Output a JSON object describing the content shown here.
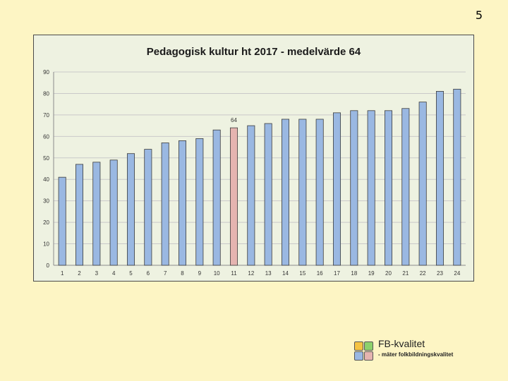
{
  "page_number": "5",
  "chart_data": {
    "type": "bar",
    "title": "Pedagogisk kultur ht 2017 - medelvärde 64",
    "xlabel": "",
    "ylabel": "",
    "categories": [
      "1",
      "2",
      "3",
      "4",
      "5",
      "6",
      "7",
      "8",
      "9",
      "10",
      "11",
      "12",
      "13",
      "14",
      "15",
      "16",
      "17",
      "18",
      "19",
      "20",
      "21",
      "22",
      "23",
      "24"
    ],
    "values": [
      41,
      47,
      48,
      49,
      52,
      54,
      57,
      58,
      59,
      63,
      64,
      65,
      66,
      68,
      68,
      68,
      71,
      72,
      72,
      72,
      73,
      76,
      81,
      82
    ],
    "highlight_index": 10,
    "highlight_label": "64",
    "ylim": [
      0,
      90
    ],
    "yticks": [
      0,
      10,
      20,
      30,
      40,
      50,
      60,
      70,
      80,
      90
    ],
    "grid": true,
    "colors": {
      "bar": "#9ab8e2",
      "highlight": "#e5b4b0",
      "bar_border": "#3c3c3c",
      "grid": "#c9c9c9"
    }
  },
  "logo": {
    "name": "FB-kvalitet",
    "tagline": "- mäter folkbildningskvalitet",
    "square_colors": [
      "#f5c342",
      "#8dd16c",
      "#9ab8e2",
      "#e5b4b0"
    ]
  }
}
